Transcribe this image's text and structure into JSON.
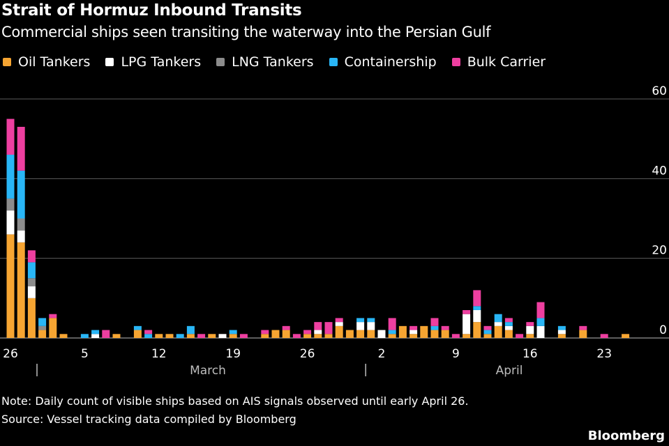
{
  "title": "Strait of Hormuz Inbound Transits",
  "subtitle": "Commercial ships seen transiting the waterway into the Persian Gulf",
  "note": "Note: Daily count of visible ships based on AIS signals observed until early April 26.",
  "source": "Source: Vessel tracking data compiled by Bloomberg",
  "brand": "Bloomberg",
  "chart_data": {
    "type": "bar",
    "stacked": true,
    "title": "Strait of Hormuz Inbound Transits",
    "xlabel": "",
    "ylabel": "",
    "ylim": [
      0,
      60
    ],
    "yticks": [
      0,
      20,
      40,
      60
    ],
    "grid": true,
    "legend": "top-left",
    "x_tick_labels": [
      "26",
      "5",
      "12",
      "19",
      "26",
      "2",
      "9",
      "16",
      "23"
    ],
    "month_labels": [
      "March",
      "April"
    ],
    "categories": [
      "Feb 26",
      "Feb 27",
      "Feb 28",
      "Mar 1",
      "Mar 2",
      "Mar 3",
      "Mar 4",
      "Mar 5",
      "Mar 6",
      "Mar 7",
      "Mar 8",
      "Mar 9",
      "Mar 10",
      "Mar 11",
      "Mar 12",
      "Mar 13",
      "Mar 14",
      "Mar 15",
      "Mar 16",
      "Mar 17",
      "Mar 18",
      "Mar 19",
      "Mar 20",
      "Mar 21",
      "Mar 22",
      "Mar 23",
      "Mar 24",
      "Mar 25",
      "Mar 26",
      "Mar 27",
      "Mar 28",
      "Mar 29",
      "Mar 30",
      "Mar 31",
      "Apr 1",
      "Apr 2",
      "Apr 3",
      "Apr 4",
      "Apr 5",
      "Apr 6",
      "Apr 7",
      "Apr 8",
      "Apr 9",
      "Apr 10",
      "Apr 11",
      "Apr 12",
      "Apr 13",
      "Apr 14",
      "Apr 15",
      "Apr 16",
      "Apr 17",
      "Apr 18",
      "Apr 19",
      "Apr 20",
      "Apr 21",
      "Apr 22",
      "Apr 23",
      "Apr 24",
      "Apr 25",
      "Apr 26"
    ],
    "series": [
      {
        "name": "Oil Tankers",
        "color": "#f6a532",
        "values": [
          26,
          24,
          10,
          2,
          5,
          1,
          0,
          0,
          0,
          0,
          1,
          0,
          2,
          0,
          1,
          1,
          0,
          1,
          0,
          1,
          0,
          1,
          0,
          0,
          1,
          2,
          2,
          0,
          1,
          1,
          1,
          3,
          2,
          2,
          2,
          0,
          1,
          3,
          1,
          3,
          2,
          2,
          0,
          1,
          4,
          1,
          3,
          2,
          0,
          1,
          0,
          0,
          1,
          0,
          2,
          0,
          0,
          0,
          1,
          0
        ]
      },
      {
        "name": "LPG Tankers",
        "color": "#ffffff",
        "values": [
          6,
          3,
          3,
          0,
          0,
          0,
          0,
          0,
          1,
          0,
          0,
          0,
          0,
          0,
          0,
          0,
          0,
          0,
          0,
          0,
          1,
          0,
          0,
          0,
          0,
          0,
          0,
          0,
          0,
          1,
          0,
          1,
          0,
          2,
          2,
          2,
          0,
          0,
          1,
          0,
          0,
          0,
          0,
          5,
          3,
          0,
          1,
          1,
          0,
          2,
          3,
          0,
          1,
          0,
          0,
          0,
          0,
          0,
          0,
          0
        ]
      },
      {
        "name": "LNG Tankers",
        "color": "#8c8c8c",
        "values": [
          3,
          3,
          2,
          1,
          0,
          0,
          0,
          0,
          0,
          0,
          0,
          0,
          0,
          0,
          0,
          0,
          0,
          0,
          0,
          0,
          0,
          0,
          0,
          0,
          0,
          0,
          0,
          0,
          0,
          0,
          0,
          0,
          0,
          0,
          0,
          0,
          0,
          0,
          0,
          0,
          0,
          0,
          0,
          0,
          0,
          0,
          0,
          0,
          0,
          0,
          0,
          0,
          0,
          0,
          0,
          0,
          0,
          0,
          0,
          0
        ]
      },
      {
        "name": "Containership",
        "color": "#29b6f6",
        "values": [
          11,
          12,
          4,
          2,
          0,
          0,
          0,
          1,
          1,
          0,
          0,
          0,
          1,
          1,
          0,
          0,
          1,
          2,
          0,
          0,
          0,
          1,
          0,
          0,
          0,
          0,
          0,
          0,
          0,
          0,
          0,
          0,
          0,
          1,
          1,
          0,
          1,
          0,
          0,
          0,
          1,
          0,
          0,
          0,
          1,
          1,
          2,
          1,
          0,
          0,
          2,
          0,
          1,
          0,
          0,
          0,
          0,
          0,
          0,
          0
        ]
      },
      {
        "name": "Bulk Carrier",
        "color": "#ee3fa0",
        "values": [
          9,
          11,
          3,
          0,
          1,
          0,
          0,
          0,
          0,
          2,
          0,
          0,
          0,
          1,
          0,
          0,
          0,
          0,
          1,
          0,
          0,
          0,
          1,
          0,
          1,
          0,
          1,
          1,
          1,
          2,
          3,
          1,
          0,
          0,
          0,
          0,
          3,
          0,
          1,
          0,
          2,
          1,
          1,
          1,
          4,
          1,
          0,
          1,
          1,
          1,
          4,
          0,
          0,
          0,
          1,
          0,
          1,
          0,
          0,
          0
        ]
      }
    ]
  }
}
